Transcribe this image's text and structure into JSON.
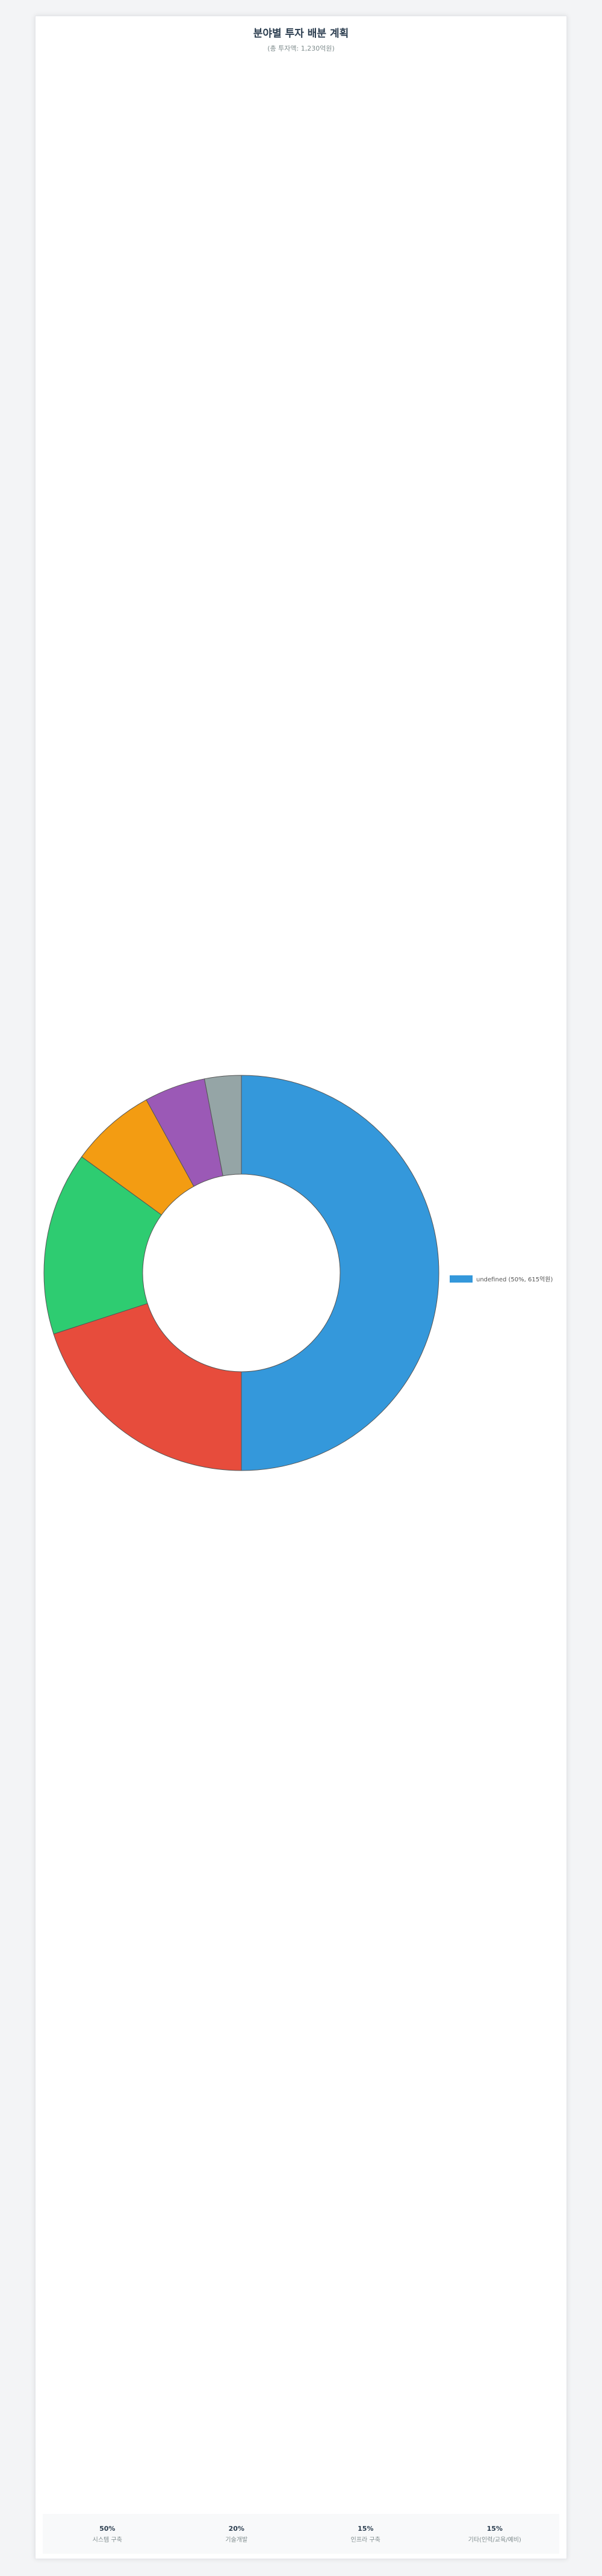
{
  "header": {
    "title": "분야별 투자 배분 계획",
    "subtitle": "(총 투자액: 1,230억원)"
  },
  "legend": {
    "label": "undefined (50%, 615억원)",
    "color": "#3498db"
  },
  "footer": {
    "stats": [
      {
        "value": "50%",
        "label": "시스템 구축"
      },
      {
        "value": "20%",
        "label": "기술개발"
      },
      {
        "value": "15%",
        "label": "인프라 구축"
      },
      {
        "value": "15%",
        "label": "기타(인력/교육/예비)"
      }
    ]
  },
  "chart_data": {
    "type": "pie",
    "donut": true,
    "title": "분야별 투자 배분 계획",
    "subtitle": "(총 투자액: 1,230억원)",
    "legend_placement": "right",
    "slices": [
      {
        "value": 50,
        "color": "#3498db"
      },
      {
        "value": 20,
        "color": "#e74c3c"
      },
      {
        "value": 15,
        "color": "#2ecc71"
      },
      {
        "value": 7,
        "color": "#f39c12"
      },
      {
        "value": 5,
        "color": "#9b59b6"
      },
      {
        "value": 3,
        "color": "#95a5a6"
      }
    ]
  }
}
